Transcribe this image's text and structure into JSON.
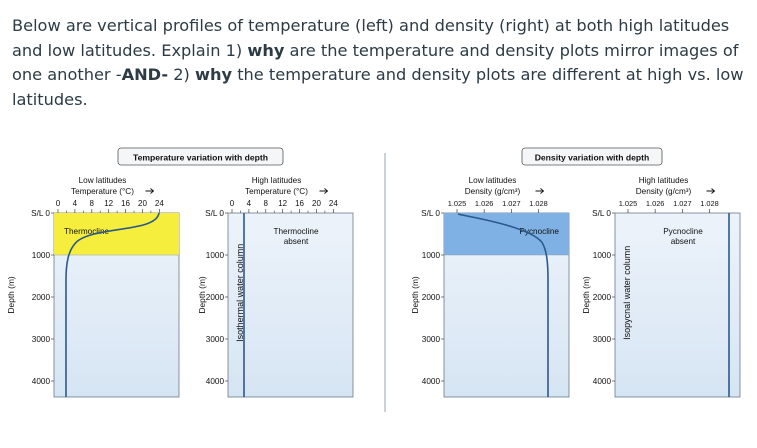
{
  "question": {
    "p1": "Below are vertical profiles of temperature (left) and density (right) at both high latitudes and low latitudes. Explain 1) ",
    "b1": "why",
    "p2": " are the temperature and density plots mirror images of one another -",
    "b2": "AND-",
    "p3": " 2) ",
    "b3": "why",
    "p4": " the temperature and density plots are different at high vs. low latitudes."
  },
  "figure": {
    "temp_title": "Temperature variation with depth",
    "density_title": "Density variation with depth",
    "sl_label": "S/L",
    "depth_axis_label": "Depth (m)",
    "depth_ticks": [
      "0",
      "1000",
      "2000",
      "3000",
      "4000"
    ],
    "temp_ticks": [
      "0",
      "4",
      "8",
      "12",
      "16",
      "20",
      "24"
    ],
    "density_ticks": [
      "1.025",
      "1.026",
      "1.027",
      "1.028"
    ],
    "temp_low": {
      "lat_label": "Low latitudes",
      "axis_label": "Temperature (°C)",
      "zone_label": "Thermocline",
      "zone_color": "#f6ee3c"
    },
    "temp_high": {
      "lat_label": "High latitudes",
      "axis_label": "Temperature (°C)",
      "absent_line1": "Thermocline",
      "absent_line2": "absent",
      "column_label": "Isothermal water column"
    },
    "dens_low": {
      "lat_label": "Low latitudes",
      "axis_label": "Density (g/cm³)",
      "zone_label": "Pycnocline",
      "zone_color": "#7fb1e4"
    },
    "dens_high": {
      "lat_label": "High latitudes",
      "axis_label": "Density (g/cm³)",
      "absent_line1": "Pycnocline",
      "absent_line2": "absent",
      "column_label": "Isopycnal water column"
    },
    "colors": {
      "panel_bg": "#dde9f6",
      "curve": "#2a5a8c",
      "frame": "#6b7a88"
    }
  }
}
